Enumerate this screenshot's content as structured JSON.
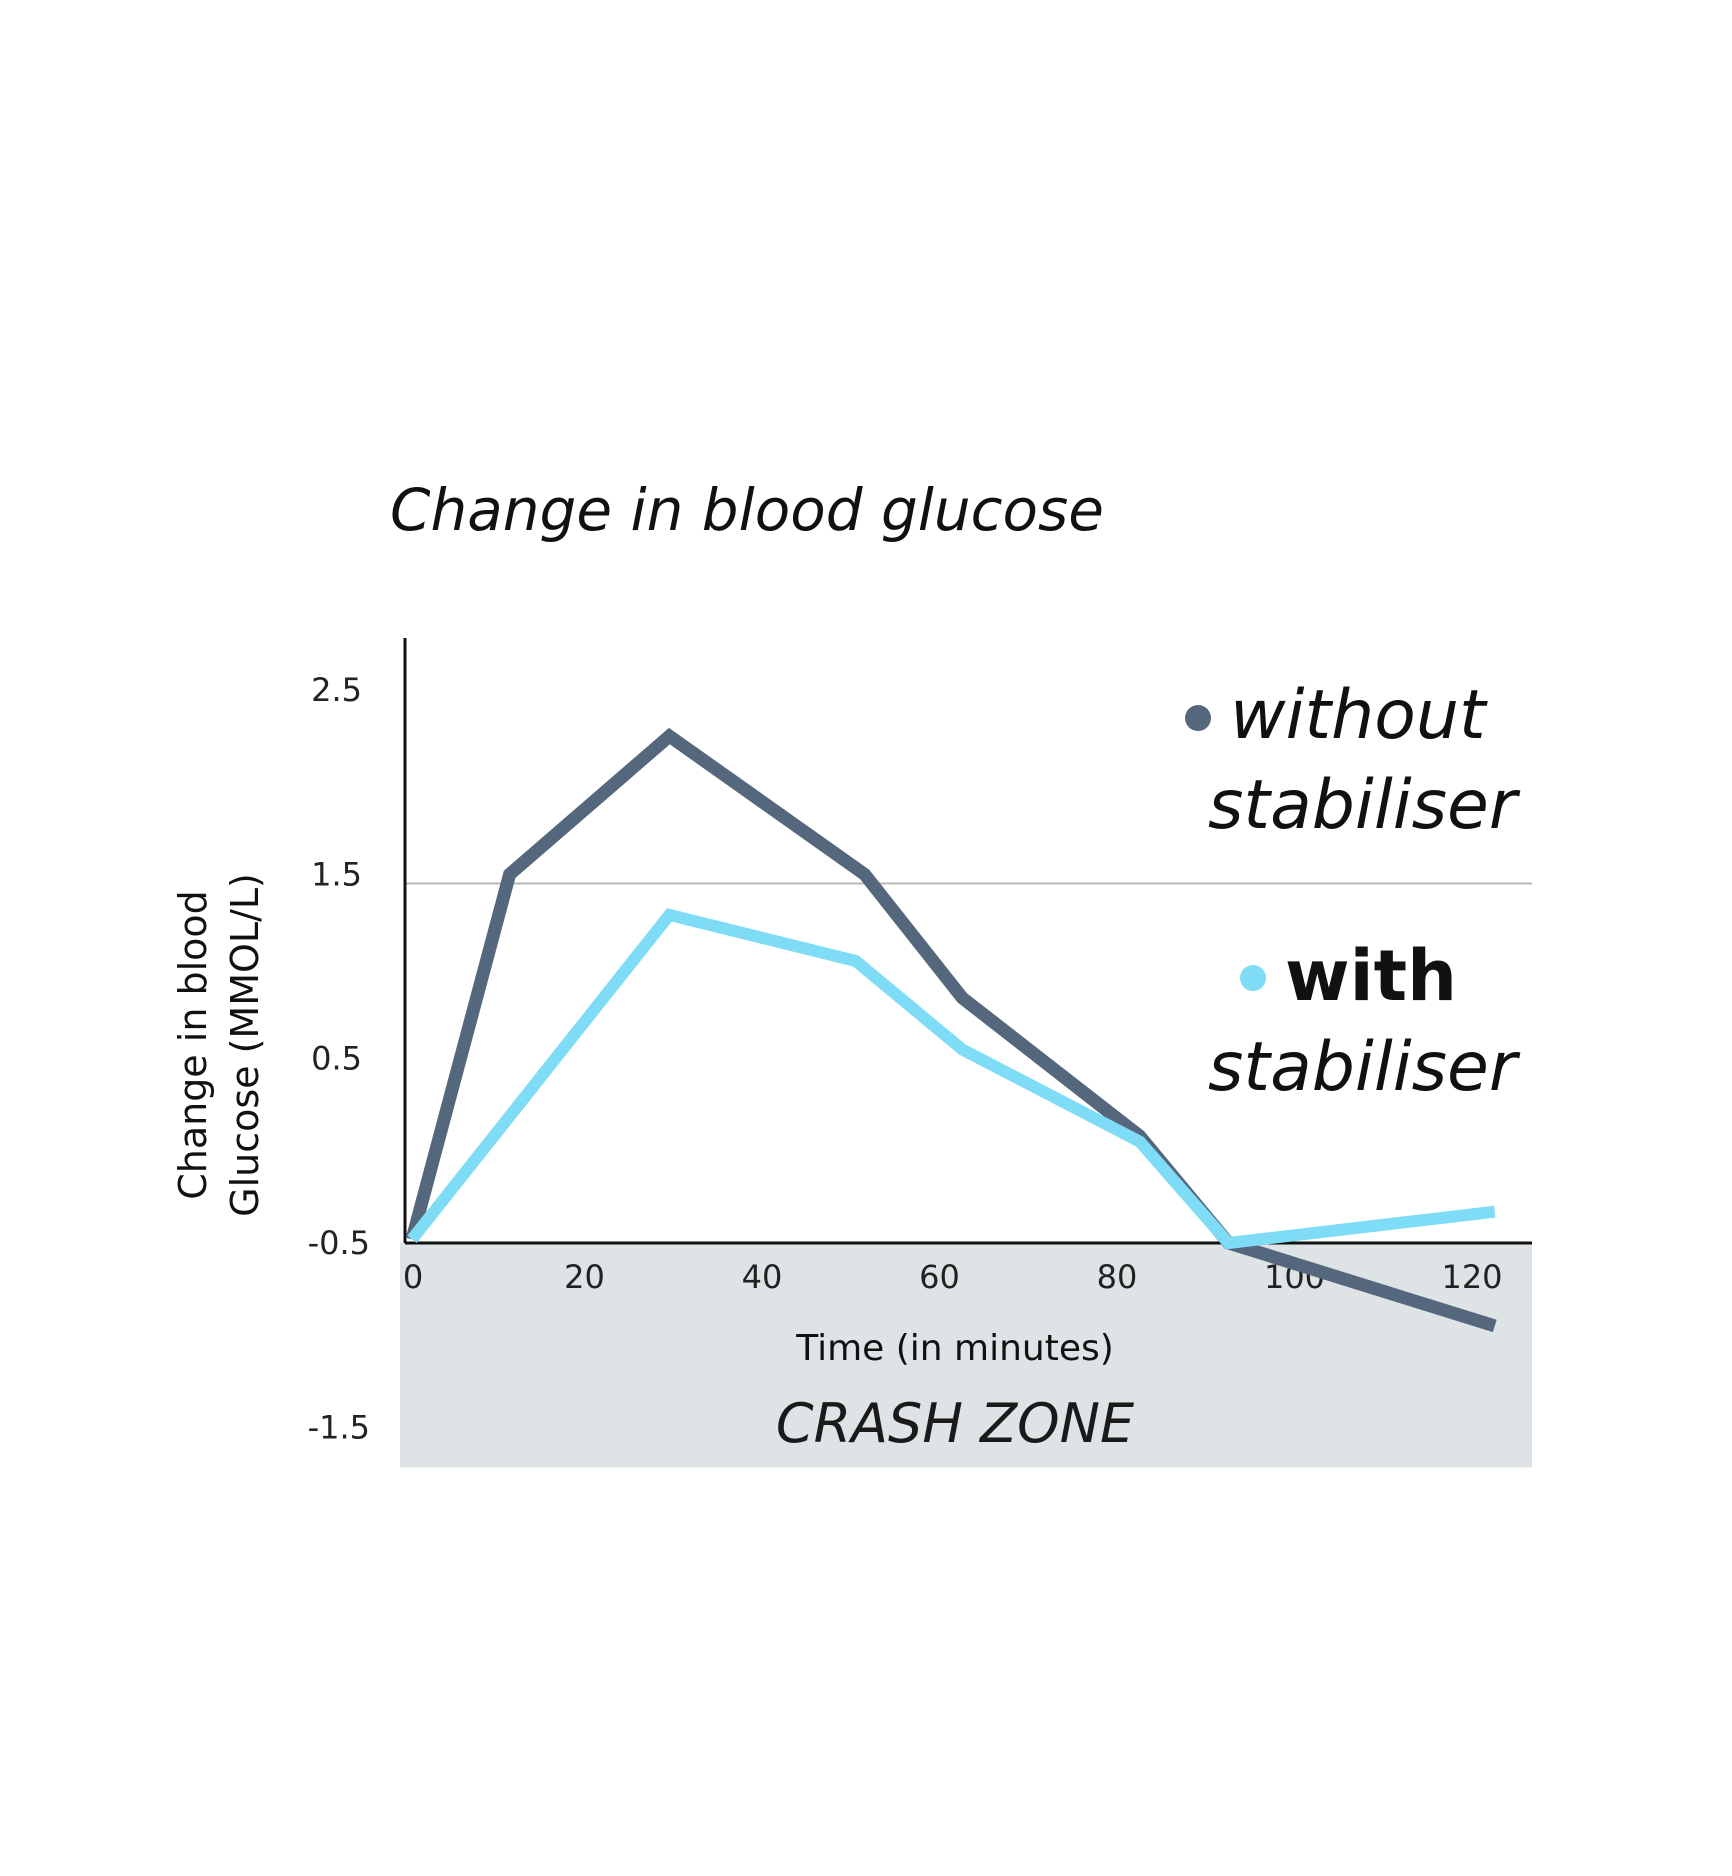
{
  "chart_data": {
    "type": "line",
    "title": "Change in blood glucose",
    "xlabel": "Time (in minutes)",
    "ylabel_line1": "Change in blood",
    "ylabel_line2": "Glucose (MMOL/L)",
    "xlim": [
      0,
      125
    ],
    "ylim": [
      -1.5,
      2.75
    ],
    "x_ticks": [
      0,
      20,
      40,
      60,
      80,
      100,
      120
    ],
    "x_tick_labels": [
      "0",
      "20",
      "40",
      "60",
      "80",
      "100",
      "120"
    ],
    "y_ticks": [
      2.5,
      1.5,
      0.5,
      -0.5,
      -1.5
    ],
    "y_tick_labels": [
      "2.5",
      "1.5",
      "0.5",
      "-0.5",
      "-1.5"
    ],
    "reference_line_y": 1.45,
    "zero_line_y": -0.5,
    "shaded_zone": {
      "label": "CRASH ZONE",
      "y_range": [
        -1.75,
        -0.5
      ],
      "color": "#dee3e6"
    },
    "grid": false,
    "legend_position": "top-right",
    "series": [
      {
        "name": "without stabiliser",
        "legend_line1": "without",
        "legend_line2": "stabiliser",
        "legend_style": "italic",
        "color": "#55677d",
        "x": [
          0,
          11,
          29,
          51,
          62,
          82,
          92,
          122
        ],
        "y": [
          -0.48,
          1.5,
          2.25,
          1.5,
          0.83,
          0.08,
          -0.5,
          -0.95
        ]
      },
      {
        "name": "with stabiliser",
        "legend_line1": "with",
        "legend_line2": "stabiliser",
        "legend_style": "bold",
        "color": "#7fdcf6",
        "x": [
          0,
          29,
          50,
          62,
          82,
          92,
          122
        ],
        "y": [
          -0.48,
          1.28,
          1.03,
          0.55,
          0.05,
          -0.5,
          -0.33
        ]
      }
    ]
  }
}
